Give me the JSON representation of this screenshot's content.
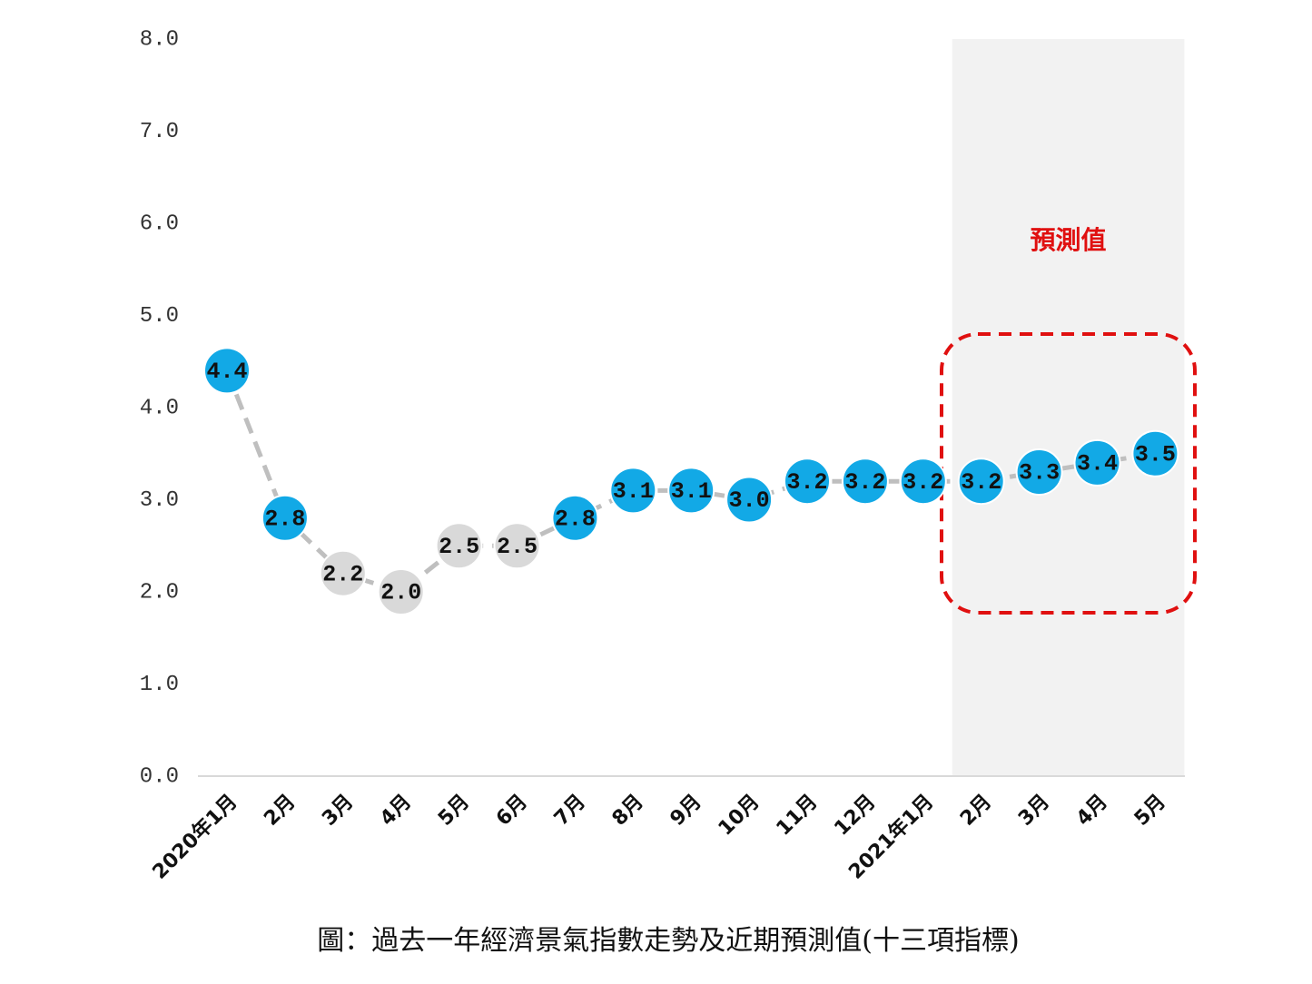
{
  "chart_data": {
    "type": "line",
    "caption": "圖：過去一年經濟景氣指數走勢及近期預測值(十三項指標)",
    "categories": [
      "2020年1月",
      "2月",
      "3月",
      "4月",
      "5月",
      "6月",
      "7月",
      "8月",
      "9月",
      "10月",
      "11月",
      "12月",
      "2021年1月",
      "2月",
      "3月",
      "4月",
      "5月"
    ],
    "values": [
      4.4,
      2.8,
      2.2,
      2.0,
      2.5,
      2.5,
      2.8,
      3.1,
      3.1,
      3.0,
      3.2,
      3.2,
      3.2,
      3.2,
      3.3,
      3.4,
      3.5
    ],
    "value_labels": [
      "4.4",
      "2.8",
      "2.2",
      "2.0",
      "2.5",
      "2.5",
      "2.8",
      "3.1",
      "3.1",
      "3.0",
      "3.2",
      "3.2",
      "3.2",
      "3.2",
      "3.3",
      "3.4",
      "3.5"
    ],
    "point_colors": [
      "#12a9e6",
      "#12a9e6",
      "#d9d9d9",
      "#d9d9d9",
      "#d9d9d9",
      "#d9d9d9",
      "#12a9e6",
      "#12a9e6",
      "#12a9e6",
      "#12a9e6",
      "#12a9e6",
      "#12a9e6",
      "#12a9e6",
      "#12a9e6",
      "#12a9e6",
      "#12a9e6",
      "#12a9e6"
    ],
    "line_color": "#bfbfbf",
    "ylim": [
      0,
      8
    ],
    "yticks": [
      {
        "value": 0,
        "label": "0.0"
      },
      {
        "value": 1,
        "label": "1.0"
      },
      {
        "value": 2,
        "label": "2.0"
      },
      {
        "value": 3,
        "label": "3.0"
      },
      {
        "value": 4,
        "label": "4.0"
      },
      {
        "value": 5,
        "label": "5.0"
      },
      {
        "value": 6,
        "label": "6.0"
      },
      {
        "value": 7,
        "label": "7.0"
      },
      {
        "value": 8,
        "label": "8.0"
      }
    ],
    "forecast_region": {
      "label": "預測值",
      "from": 13,
      "to": 16,
      "color": "#f2f2f2"
    }
  }
}
